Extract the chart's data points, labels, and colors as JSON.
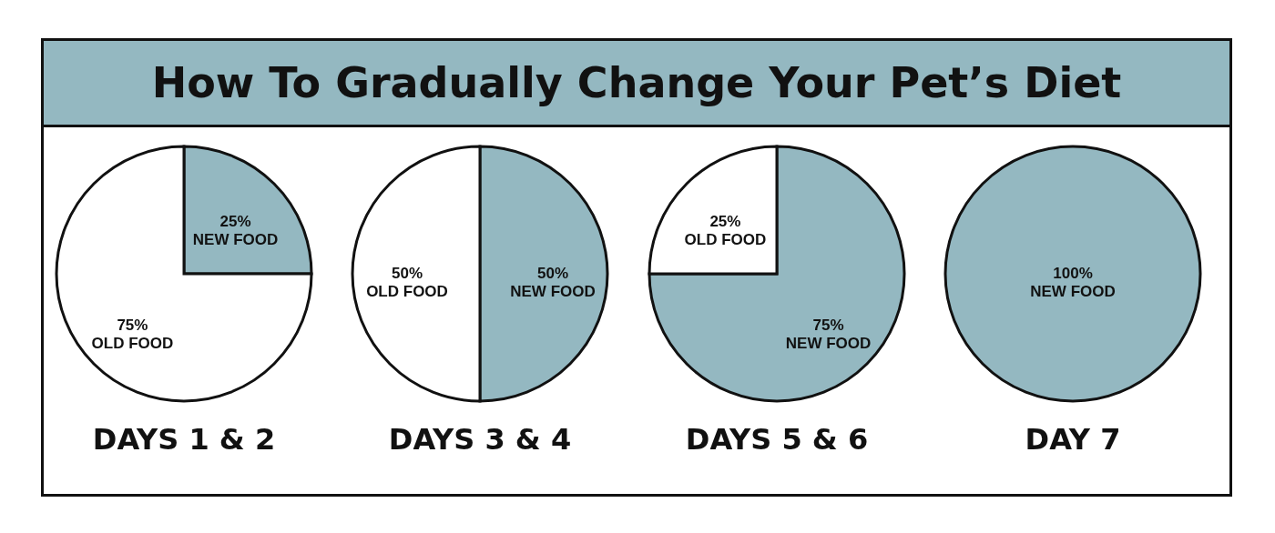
{
  "chart_data": [
    {
      "type": "pie",
      "title": "How To Gradually Change Your Pet’s Diet",
      "xlabel": "DAYS 1 & 2",
      "categories": [
        "NEW FOOD",
        "OLD FOOD"
      ],
      "values": [
        25,
        75
      ],
      "colors": [
        "#94b8c1",
        "#ffffff"
      ],
      "value_labels": [
        "25%",
        "75%"
      ]
    },
    {
      "type": "pie",
      "xlabel": "DAYS 3 & 4",
      "categories": [
        "NEW FOOD",
        "OLD FOOD"
      ],
      "values": [
        50,
        50
      ],
      "colors": [
        "#94b8c1",
        "#ffffff"
      ],
      "value_labels": [
        "50%",
        "50%"
      ]
    },
    {
      "type": "pie",
      "xlabel": "DAYS 5 & 6",
      "categories": [
        "NEW FOOD",
        "OLD FOOD"
      ],
      "values": [
        75,
        25
      ],
      "colors": [
        "#94b8c1",
        "#ffffff"
      ],
      "value_labels": [
        "75%",
        "25%"
      ]
    },
    {
      "type": "pie",
      "xlabel": "DAY 7",
      "categories": [
        "NEW FOOD"
      ],
      "values": [
        100
      ],
      "colors": [
        "#94b8c1"
      ],
      "value_labels": [
        "100%"
      ]
    }
  ]
}
